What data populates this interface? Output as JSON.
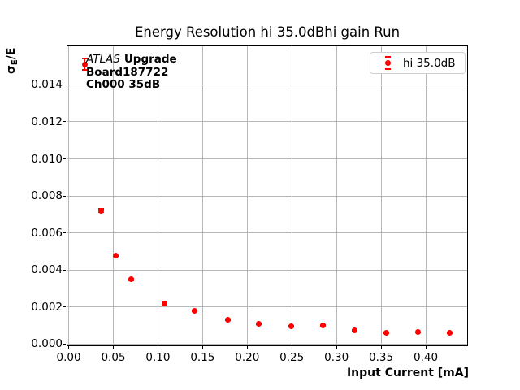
{
  "chart_data": {
    "type": "scatter",
    "title": "Energy Resolution hi 35.0dBhi gain Run",
    "xlabel": "Input Current [mA]",
    "ylabel": "σE/E",
    "ylabel_parts": {
      "symbol": "σ",
      "subscript": "E",
      "suffix": "/E"
    },
    "annotation": {
      "italic": "ATLAS",
      "bold_suffix": "Upgrade",
      "line2": "Board187722",
      "line3": "Ch000 35dB"
    },
    "legend": {
      "position": "upper-right",
      "entries": [
        {
          "label": "hi 35.0dB",
          "color": "#ff0000",
          "marker": "errorbar-dot"
        }
      ]
    },
    "series": [
      {
        "name": "hi 35.0dB",
        "color": "#ff0000",
        "marker": "circle-errorbar",
        "points": [
          {
            "x": 0.018,
            "y": 0.0151,
            "yerr": 0.0003
          },
          {
            "x": 0.036,
            "y": 0.0072,
            "yerr": 0.0001
          },
          {
            "x": 0.053,
            "y": 0.0048,
            "yerr": 7e-05
          },
          {
            "x": 0.07,
            "y": 0.0035,
            "yerr": 5e-05
          },
          {
            "x": 0.107,
            "y": 0.0022,
            "yerr": 4e-05
          },
          {
            "x": 0.141,
            "y": 0.0018,
            "yerr": 4e-05
          },
          {
            "x": 0.178,
            "y": 0.0013,
            "yerr": 3e-05
          },
          {
            "x": 0.213,
            "y": 0.0011,
            "yerr": 3e-05
          },
          {
            "x": 0.249,
            "y": 0.00095,
            "yerr": 3e-05
          },
          {
            "x": 0.285,
            "y": 0.001,
            "yerr": 3e-05
          },
          {
            "x": 0.32,
            "y": 0.00075,
            "yerr": 2e-05
          },
          {
            "x": 0.356,
            "y": 0.0006,
            "yerr": 2e-05
          },
          {
            "x": 0.391,
            "y": 0.00064,
            "yerr": 2e-05
          },
          {
            "x": 0.427,
            "y": 0.0006,
            "yerr": 2e-05
          }
        ]
      }
    ],
    "axes": {
      "xlim": [
        -0.0014,
        0.4464
      ],
      "ylim": [
        -6.6e-05,
        0.016075
      ],
      "xticks": {
        "values": [
          0,
          0.05,
          0.1,
          0.15,
          0.2,
          0.25,
          0.3,
          0.35,
          0.4
        ],
        "labels": [
          "0.00",
          "0.05",
          "0.10",
          "0.15",
          "0.20",
          "0.25",
          "0.30",
          "0.35",
          "0.40"
        ]
      },
      "yticks": {
        "values": [
          0,
          0.002,
          0.004,
          0.006,
          0.008,
          0.01,
          0.012,
          0.014
        ],
        "labels": [
          "0.000",
          "0.002",
          "0.004",
          "0.006",
          "0.008",
          "0.010",
          "0.012",
          "0.014"
        ]
      },
      "grid": true,
      "grid_color": "#b8b8b8",
      "spine_color": "#000000"
    }
  }
}
